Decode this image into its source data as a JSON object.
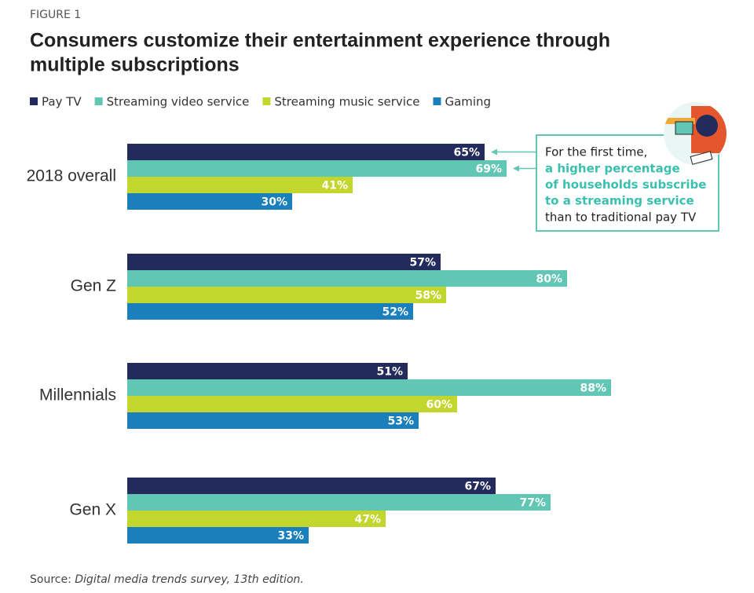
{
  "chart_data": {
    "type": "bar",
    "orientation": "horizontal",
    "figure_label": "FIGURE 1",
    "title": [
      "Consumers customize their entertainment experience through",
      "multiple subscriptions"
    ],
    "categories": [
      "2018 overall",
      "Gen Z",
      "Millennials",
      "Gen X"
    ],
    "series": [
      {
        "name": "Pay TV",
        "color": "#232a5c",
        "values": [
          65,
          57,
          51,
          67
        ],
        "value_labels": [
          "65%",
          "57%",
          "51%",
          "67%"
        ]
      },
      {
        "name": "Streaming video service",
        "color": "#62c6b5",
        "values": [
          69,
          80,
          88,
          77
        ],
        "value_labels": [
          "69%",
          "80%",
          "88%",
          "77%"
        ]
      },
      {
        "name": "Streaming music service",
        "color": "#c3d62e",
        "values": [
          41,
          58,
          60,
          47
        ],
        "value_labels": [
          "41%",
          "58%",
          "60%",
          "47%"
        ]
      },
      {
        "name": "Gaming",
        "color": "#1a7fba",
        "values": [
          30,
          52,
          53,
          33
        ],
        "value_labels": [
          "30%",
          "52%",
          "53%",
          "33%"
        ]
      }
    ],
    "xlim": [
      0,
      100
    ],
    "annotation": {
      "intro": "For the first time,",
      "highlight": [
        "a higher percentage",
        "of households subscribe",
        "to a streaming service"
      ],
      "outro": "than to traditional pay TV",
      "color": "#3bbfae"
    },
    "source_label": "Source:",
    "source": "Digital media trends survey, 13th edition."
  }
}
